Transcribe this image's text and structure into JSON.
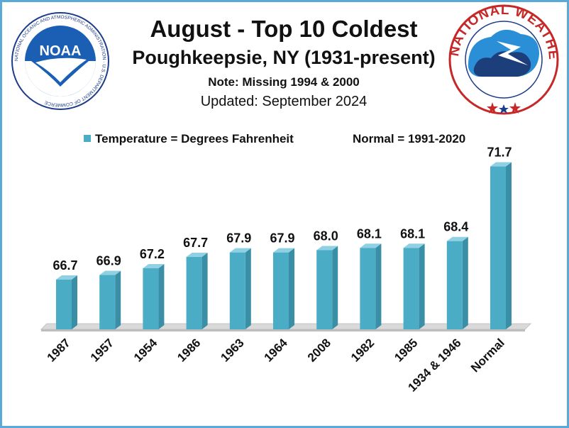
{
  "header": {
    "title": "August - Top  10 Coldest",
    "location": "Poughkeepsie, NY (1931-present)",
    "note": "Note: Missing 1994 & 2000",
    "updated": "Updated:  September 2024"
  },
  "legend": {
    "series_label": "Temperature = Degrees Fahrenheit",
    "normal_label": "Normal = 1991-2020"
  },
  "logos": {
    "noaa": {
      "icon": "noaa-logo",
      "text": "NOAA",
      "ring_text": "NATIONAL OCEANIC AND ATMOSPHERIC ADMINISTRATION · U.S. DEPARTMENT OF COMMERCE"
    },
    "nws": {
      "icon": "nws-logo",
      "ring_text": "NATIONAL WEATHER SERVICE"
    }
  },
  "colors": {
    "bar_front": "#4bacc6",
    "bar_side": "#3a8ea6",
    "bar_top": "#8fd0e2",
    "frame": "#5aa9d6",
    "floor": "#d9d9d9"
  },
  "chart_data": {
    "type": "bar",
    "categories": [
      "1987",
      "1957",
      "1954",
      "1986",
      "1963",
      "1964",
      "2008",
      "1982",
      "1985",
      "1934 & 1946",
      "Normal"
    ],
    "series": [
      {
        "name": "Temperature = Degrees Fahrenheit",
        "values": [
          66.7,
          66.9,
          67.2,
          67.7,
          67.9,
          67.9,
          68.0,
          68.1,
          68.1,
          68.4,
          71.7
        ]
      }
    ],
    "value_labels": [
      "66.7",
      "66.9",
      "67.2",
      "67.7",
      "67.9",
      "67.9",
      "68.0",
      "68.1",
      "68.1",
      "68.4",
      "71.7"
    ],
    "ylim": [
      64.5,
      72
    ],
    "grid": false,
    "legend_position": "top"
  }
}
